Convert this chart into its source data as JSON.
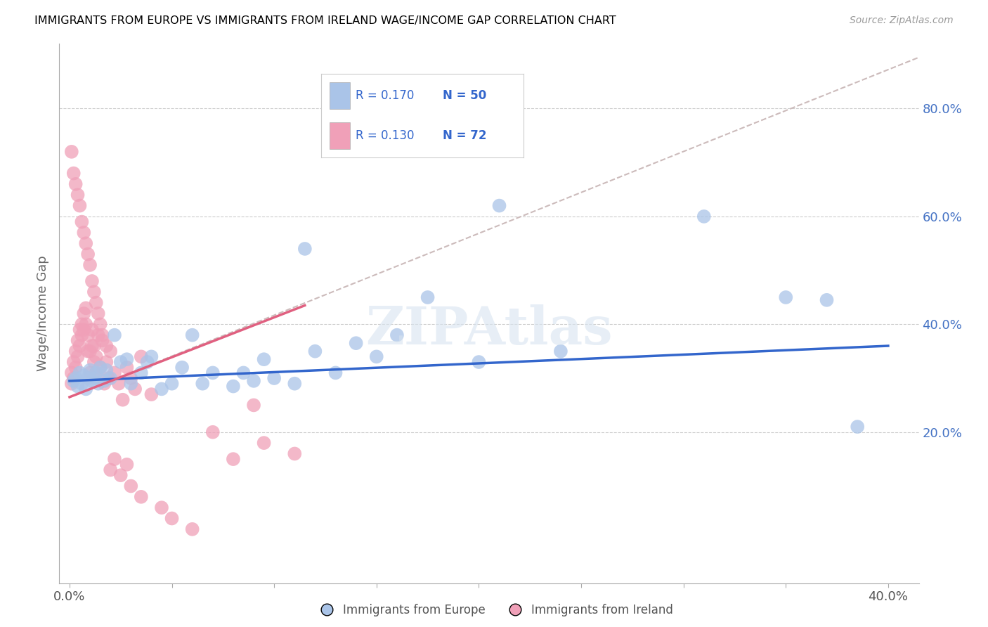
{
  "title": "IMMIGRANTS FROM EUROPE VS IMMIGRANTS FROM IRELAND WAGE/INCOME GAP CORRELATION CHART",
  "source": "Source: ZipAtlas.com",
  "ylabel": "Wage/Income Gap",
  "xlim": [
    -0.005,
    0.415
  ],
  "ylim": [
    -0.08,
    0.92
  ],
  "x_ticks": [
    0.0,
    0.05,
    0.1,
    0.15,
    0.2,
    0.25,
    0.3,
    0.35,
    0.4
  ],
  "x_tick_labels": [
    "0.0%",
    "",
    "",
    "",
    "",
    "",
    "",
    "",
    "40.0%"
  ],
  "y_ticks_right": [
    0.2,
    0.4,
    0.6,
    0.8
  ],
  "y_tick_labels_right": [
    "20.0%",
    "40.0%",
    "60.0%",
    "80.0%"
  ],
  "color_europe": "#aac4e8",
  "color_ireland": "#f0a0b8",
  "color_europe_line": "#3366cc",
  "color_ireland_line": "#e06080",
  "color_dashed": "#ccbbbb",
  "watermark": "ZIPAtlas",
  "eu_line_x": [
    0.0,
    0.4
  ],
  "eu_line_y": [
    0.295,
    0.36
  ],
  "ir_line_x": [
    0.0,
    0.115
  ],
  "ir_line_y": [
    0.265,
    0.435
  ],
  "dash_line_x": [
    0.0,
    0.415
  ],
  "dash_line_y": [
    0.265,
    0.895
  ],
  "europe_x": [
    0.002,
    0.003,
    0.004,
    0.005,
    0.006,
    0.007,
    0.008,
    0.009,
    0.01,
    0.011,
    0.012,
    0.013,
    0.014,
    0.015,
    0.017,
    0.018,
    0.02,
    0.022,
    0.025,
    0.028,
    0.03,
    0.035,
    0.038,
    0.04,
    0.045,
    0.05,
    0.055,
    0.06,
    0.065,
    0.07,
    0.08,
    0.085,
    0.09,
    0.095,
    0.1,
    0.11,
    0.115,
    0.12,
    0.13,
    0.14,
    0.15,
    0.16,
    0.175,
    0.2,
    0.21,
    0.24,
    0.31,
    0.35,
    0.37,
    0.385
  ],
  "europe_y": [
    0.295,
    0.3,
    0.285,
    0.31,
    0.29,
    0.305,
    0.28,
    0.3,
    0.315,
    0.295,
    0.3,
    0.31,
    0.29,
    0.32,
    0.295,
    0.315,
    0.3,
    0.38,
    0.33,
    0.335,
    0.29,
    0.31,
    0.33,
    0.34,
    0.28,
    0.29,
    0.32,
    0.38,
    0.29,
    0.31,
    0.285,
    0.31,
    0.295,
    0.335,
    0.3,
    0.29,
    0.54,
    0.35,
    0.31,
    0.365,
    0.34,
    0.38,
    0.45,
    0.33,
    0.62,
    0.35,
    0.6,
    0.45,
    0.445,
    0.21
  ],
  "ireland_x": [
    0.001,
    0.001,
    0.002,
    0.002,
    0.003,
    0.003,
    0.004,
    0.004,
    0.005,
    0.005,
    0.006,
    0.006,
    0.007,
    0.007,
    0.008,
    0.008,
    0.009,
    0.009,
    0.01,
    0.01,
    0.011,
    0.011,
    0.012,
    0.012,
    0.013,
    0.013,
    0.014,
    0.015,
    0.016,
    0.017,
    0.018,
    0.019,
    0.02,
    0.022,
    0.024,
    0.026,
    0.028,
    0.03,
    0.032,
    0.035,
    0.001,
    0.002,
    0.003,
    0.004,
    0.005,
    0.006,
    0.007,
    0.008,
    0.009,
    0.01,
    0.011,
    0.012,
    0.013,
    0.014,
    0.015,
    0.016,
    0.018,
    0.02,
    0.022,
    0.025,
    0.028,
    0.03,
    0.035,
    0.04,
    0.045,
    0.05,
    0.06,
    0.07,
    0.08,
    0.09,
    0.095,
    0.11
  ],
  "ireland_y": [
    0.29,
    0.31,
    0.3,
    0.33,
    0.32,
    0.35,
    0.34,
    0.37,
    0.36,
    0.39,
    0.38,
    0.4,
    0.39,
    0.42,
    0.4,
    0.43,
    0.35,
    0.38,
    0.31,
    0.35,
    0.36,
    0.39,
    0.33,
    0.36,
    0.31,
    0.34,
    0.38,
    0.32,
    0.37,
    0.29,
    0.33,
    0.3,
    0.35,
    0.31,
    0.29,
    0.26,
    0.32,
    0.3,
    0.28,
    0.34,
    0.72,
    0.68,
    0.66,
    0.64,
    0.62,
    0.59,
    0.57,
    0.55,
    0.53,
    0.51,
    0.48,
    0.46,
    0.44,
    0.42,
    0.4,
    0.38,
    0.36,
    0.13,
    0.15,
    0.12,
    0.14,
    0.1,
    0.08,
    0.27,
    0.06,
    0.04,
    0.02,
    0.2,
    0.15,
    0.25,
    0.18,
    0.16
  ]
}
